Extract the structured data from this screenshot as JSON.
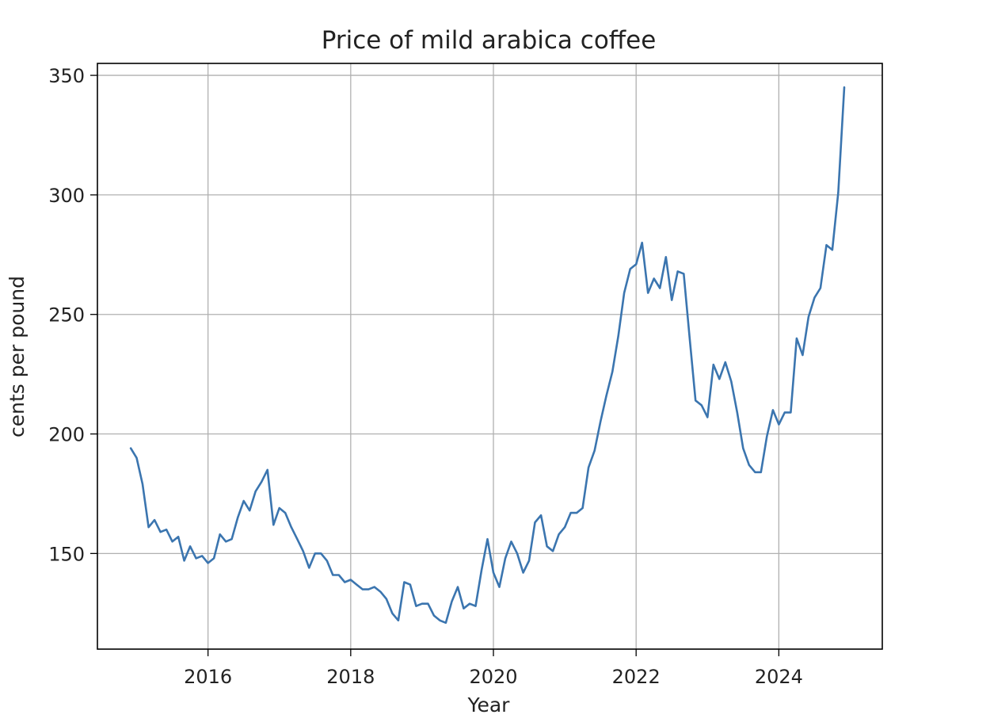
{
  "chart_data": {
    "type": "line",
    "title": "Price of mild arabica coffee",
    "xlabel": "Year",
    "ylabel": "cents per pound",
    "xlim": [
      2014.45,
      2025.45
    ],
    "ylim": [
      110,
      355
    ],
    "x_ticks": [
      2016,
      2018,
      2020,
      2022,
      2024
    ],
    "x_tick_labels": [
      "2016",
      "2018",
      "2020",
      "2022",
      "2024"
    ],
    "y_ticks": [
      150,
      200,
      250,
      300,
      350
    ],
    "y_tick_labels": [
      "150",
      "200",
      "250",
      "300",
      "350"
    ],
    "grid": true,
    "line_color": "#3b75af",
    "series": [
      {
        "name": "",
        "x": [
          2014.917,
          2015.0,
          2015.083,
          2015.167,
          2015.25,
          2015.333,
          2015.417,
          2015.5,
          2015.583,
          2015.667,
          2015.75,
          2015.833,
          2015.917,
          2016.0,
          2016.083,
          2016.167,
          2016.25,
          2016.333,
          2016.417,
          2016.5,
          2016.583,
          2016.667,
          2016.75,
          2016.833,
          2016.917,
          2017.0,
          2017.083,
          2017.167,
          2017.25,
          2017.333,
          2017.417,
          2017.5,
          2017.583,
          2017.667,
          2017.75,
          2017.833,
          2017.917,
          2018.0,
          2018.083,
          2018.167,
          2018.25,
          2018.333,
          2018.417,
          2018.5,
          2018.583,
          2018.667,
          2018.75,
          2018.833,
          2018.917,
          2019.0,
          2019.083,
          2019.167,
          2019.25,
          2019.333,
          2019.417,
          2019.5,
          2019.583,
          2019.667,
          2019.75,
          2019.833,
          2019.917,
          2020.0,
          2020.083,
          2020.167,
          2020.25,
          2020.333,
          2020.417,
          2020.5,
          2020.583,
          2020.667,
          2020.75,
          2020.833,
          2020.917,
          2021.0,
          2021.083,
          2021.167,
          2021.25,
          2021.333,
          2021.417,
          2021.5,
          2021.583,
          2021.667,
          2021.75,
          2021.833,
          2021.917,
          2022.0,
          2022.083,
          2022.167,
          2022.25,
          2022.333,
          2022.417,
          2022.5,
          2022.583,
          2022.667,
          2022.75,
          2022.833,
          2022.917,
          2023.0,
          2023.083,
          2023.167,
          2023.25,
          2023.333,
          2023.417,
          2023.5,
          2023.583,
          2023.667,
          2023.75,
          2023.833,
          2023.917,
          2024.0,
          2024.083,
          2024.167,
          2024.25,
          2024.333,
          2024.417,
          2024.5,
          2024.583,
          2024.667,
          2024.75,
          2024.833,
          2024.917
        ],
        "values": [
          194,
          190,
          179,
          161,
          164,
          159,
          160,
          155,
          157,
          147,
          153,
          148,
          149,
          146,
          148,
          158,
          155,
          156,
          165,
          172,
          168,
          176,
          180,
          185,
          162,
          169,
          167,
          161,
          156,
          151,
          144,
          150,
          150,
          147,
          141,
          141,
          138,
          139,
          137,
          135,
          135,
          136,
          134,
          131,
          125,
          122,
          138,
          137,
          128,
          129,
          129,
          124,
          122,
          121,
          130,
          136,
          127,
          129,
          128,
          143,
          156,
          142,
          136,
          148,
          155,
          150,
          142,
          147,
          163,
          166,
          153,
          151,
          158,
          161,
          167,
          167,
          169,
          186,
          193,
          205,
          216,
          226,
          241,
          259,
          269,
          271,
          280,
          259,
          265,
          261,
          274,
          256,
          268,
          267,
          240,
          214,
          212,
          207,
          229,
          223,
          230,
          222,
          209,
          194,
          187,
          184,
          184,
          199,
          210,
          204,
          209,
          209,
          240,
          233,
          249,
          257,
          261,
          279,
          277,
          301,
          345
        ]
      }
    ]
  }
}
